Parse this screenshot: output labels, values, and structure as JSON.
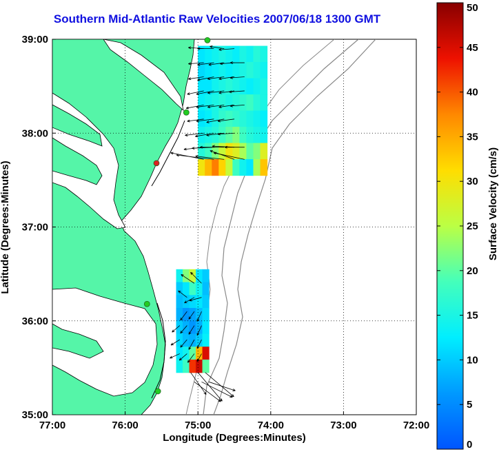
{
  "chart_data": {
    "type": "scatter",
    "title": "Southern Mid-Atlantic Raw Velocities 2007/06/18 1300 GMT",
    "xlabel": "Longitude (Degrees:Minutes)",
    "ylabel": "Latitude (Degrees:Minutes)",
    "xlim": [
      -77,
      -72
    ],
    "ylim": [
      35,
      39
    ],
    "xticks": [
      -77,
      -76,
      -75,
      -74,
      -73,
      -72
    ],
    "xtick_labels": [
      "77:00",
      "76:00",
      "75:00",
      "74:00",
      "73:00",
      "72:00"
    ],
    "yticks": [
      35,
      36,
      37,
      38,
      39
    ],
    "ytick_labels": [
      "35:00",
      "36:00",
      "37:00",
      "38:00",
      "39:00"
    ],
    "grid": true,
    "colorbar": {
      "label": "Surface Velocity (cm/s)",
      "range": [
        0,
        50
      ],
      "ticks": [
        0,
        5,
        10,
        15,
        20,
        25,
        30,
        35,
        40,
        45,
        50
      ],
      "colormap": "jet"
    },
    "land_color": "#55f5a8",
    "stations": [
      {
        "lon": -74.87,
        "lat": 38.99,
        "color": "#22cc22"
      },
      {
        "lon": -75.16,
        "lat": 38.22,
        "color": "#22cc22"
      },
      {
        "lon": -75.57,
        "lat": 37.68,
        "color": "#dd2222"
      },
      {
        "lon": -75.7,
        "lat": 36.18,
        "color": "#22cc22"
      },
      {
        "lon": -75.55,
        "lat": 35.25,
        "color": "#22cc22"
      }
    ],
    "regions": [
      {
        "name": "north",
        "lon": [
          -75.0,
          -74.05
        ],
        "lat": [
          37.55,
          38.93
        ],
        "speeds": [
          [
            12,
            13,
            14,
            15,
            14,
            13,
            15,
            14,
            16,
            15
          ],
          [
            11,
            12,
            13,
            14,
            13,
            14,
            15,
            16,
            15,
            14
          ],
          [
            12,
            12,
            14,
            15,
            16,
            15,
            14,
            13,
            14,
            15
          ],
          [
            13,
            14,
            15,
            16,
            15,
            16,
            17,
            18,
            16,
            15
          ],
          [
            12,
            13,
            15,
            17,
            18,
            17,
            16,
            15,
            14,
            13
          ],
          [
            14,
            15,
            16,
            18,
            20,
            22,
            18,
            16,
            15,
            14
          ],
          [
            16,
            18,
            22,
            26,
            30,
            28,
            24,
            20,
            22,
            28
          ],
          [
            30,
            34,
            38,
            32,
            26,
            18,
            14,
            12,
            24,
            33
          ]
        ]
      },
      {
        "name": "south",
        "lon": [
          -75.3,
          -74.85
        ],
        "lat": [
          35.45,
          36.55
        ],
        "speeds": [
          [
            14,
            22,
            26,
            12,
            10
          ],
          [
            10,
            12,
            18,
            14,
            9
          ],
          [
            9,
            10,
            11,
            12,
            10
          ],
          [
            8,
            6,
            7,
            9,
            11
          ],
          [
            10,
            8,
            6,
            8,
            12
          ],
          [
            11,
            9,
            8,
            10,
            13
          ],
          [
            12,
            14,
            20,
            34,
            45
          ],
          [
            14,
            18,
            42,
            46,
            20
          ]
        ]
      }
    ],
    "vectors": [
      {
        "lon": -74.92,
        "lat": 38.9,
        "u": -14,
        "v": 1
      },
      {
        "lon": -74.78,
        "lat": 38.9,
        "u": -15,
        "v": 0
      },
      {
        "lon": -74.64,
        "lat": 38.9,
        "u": -13,
        "v": 2
      },
      {
        "lon": -74.5,
        "lat": 38.9,
        "u": -14,
        "v": -1
      },
      {
        "lon": -74.92,
        "lat": 38.75,
        "u": -14,
        "v": -1
      },
      {
        "lon": -74.78,
        "lat": 38.75,
        "u": -15,
        "v": -2
      },
      {
        "lon": -74.64,
        "lat": 38.75,
        "u": -14,
        "v": -2
      },
      {
        "lon": -74.5,
        "lat": 38.75,
        "u": -13,
        "v": -1
      },
      {
        "lon": -74.36,
        "lat": 38.75,
        "u": -13,
        "v": 0
      },
      {
        "lon": -74.92,
        "lat": 38.6,
        "u": -14,
        "v": -2
      },
      {
        "lon": -74.78,
        "lat": 38.6,
        "u": -15,
        "v": -3
      },
      {
        "lon": -74.64,
        "lat": 38.6,
        "u": -15,
        "v": -2
      },
      {
        "lon": -74.5,
        "lat": 38.6,
        "u": -14,
        "v": -2
      },
      {
        "lon": -74.36,
        "lat": 38.6,
        "u": -13,
        "v": -1
      },
      {
        "lon": -74.92,
        "lat": 38.45,
        "u": -15,
        "v": -3
      },
      {
        "lon": -74.78,
        "lat": 38.45,
        "u": -16,
        "v": -3
      },
      {
        "lon": -74.64,
        "lat": 38.45,
        "u": -15,
        "v": -2
      },
      {
        "lon": -74.5,
        "lat": 38.45,
        "u": -14,
        "v": -2
      },
      {
        "lon": -74.36,
        "lat": 38.45,
        "u": -14,
        "v": -1
      },
      {
        "lon": -74.92,
        "lat": 38.3,
        "u": -16,
        "v": -3
      },
      {
        "lon": -74.78,
        "lat": 38.3,
        "u": -16,
        "v": -2
      },
      {
        "lon": -74.64,
        "lat": 38.3,
        "u": -15,
        "v": -2
      },
      {
        "lon": -74.5,
        "lat": 38.3,
        "u": -14,
        "v": -2
      },
      {
        "lon": -74.36,
        "lat": 38.3,
        "u": -13,
        "v": -1
      },
      {
        "lon": -74.92,
        "lat": 38.15,
        "u": -15,
        "v": -2
      },
      {
        "lon": -74.78,
        "lat": 38.15,
        "u": -16,
        "v": -2
      },
      {
        "lon": -74.64,
        "lat": 38.15,
        "u": -16,
        "v": -3
      },
      {
        "lon": -74.5,
        "lat": 38.15,
        "u": -15,
        "v": -2
      },
      {
        "lon": -74.92,
        "lat": 38.0,
        "u": -17,
        "v": -2
      },
      {
        "lon": -74.78,
        "lat": 38.0,
        "u": -17,
        "v": -3
      },
      {
        "lon": -74.64,
        "lat": 38.0,
        "u": -16,
        "v": -2
      },
      {
        "lon": -74.5,
        "lat": 38.0,
        "u": -15,
        "v": -1
      },
      {
        "lon": -74.92,
        "lat": 37.85,
        "u": -18,
        "v": -2
      },
      {
        "lon": -74.78,
        "lat": 37.85,
        "u": -20,
        "v": -1
      },
      {
        "lon": -74.64,
        "lat": 37.85,
        "u": -22,
        "v": 0
      },
      {
        "lon": -74.5,
        "lat": 37.85,
        "u": -20,
        "v": 1
      },
      {
        "lon": -74.36,
        "lat": 37.85,
        "u": -18,
        "v": 0
      },
      {
        "lon": -74.92,
        "lat": 37.72,
        "u": -30,
        "v": 6
      },
      {
        "lon": -74.78,
        "lat": 37.72,
        "u": -34,
        "v": 4
      },
      {
        "lon": -74.64,
        "lat": 37.72,
        "u": -26,
        "v": 3
      },
      {
        "lon": -74.5,
        "lat": 37.72,
        "u": -22,
        "v": 8
      },
      {
        "lon": -74.36,
        "lat": 37.72,
        "u": -28,
        "v": 6
      },
      {
        "lon": -75.05,
        "lat": 36.4,
        "u": -12,
        "v": 8
      },
      {
        "lon": -74.95,
        "lat": 36.4,
        "u": -10,
        "v": 10
      },
      {
        "lon": -75.15,
        "lat": 36.25,
        "u": -8,
        "v": 6
      },
      {
        "lon": -75.05,
        "lat": 36.25,
        "u": -9,
        "v": -5
      },
      {
        "lon": -74.95,
        "lat": 36.25,
        "u": -11,
        "v": -3
      },
      {
        "lon": -75.15,
        "lat": 36.1,
        "u": -6,
        "v": -8
      },
      {
        "lon": -75.05,
        "lat": 36.1,
        "u": -5,
        "v": -7
      },
      {
        "lon": -74.95,
        "lat": 36.1,
        "u": -4,
        "v": -9
      },
      {
        "lon": -75.25,
        "lat": 35.95,
        "u": -7,
        "v": -6
      },
      {
        "lon": -75.15,
        "lat": 35.95,
        "u": -6,
        "v": -7
      },
      {
        "lon": -75.05,
        "lat": 35.95,
        "u": -5,
        "v": -8
      },
      {
        "lon": -74.95,
        "lat": 35.95,
        "u": -4,
        "v": -9
      },
      {
        "lon": -75.25,
        "lat": 35.8,
        "u": -8,
        "v": -5
      },
      {
        "lon": -75.15,
        "lat": 35.8,
        "u": -6,
        "v": -7
      },
      {
        "lon": -75.05,
        "lat": 35.8,
        "u": -5,
        "v": -9
      },
      {
        "lon": -74.95,
        "lat": 35.8,
        "u": -4,
        "v": -8
      },
      {
        "lon": -75.25,
        "lat": 35.65,
        "u": -9,
        "v": -4
      },
      {
        "lon": -75.15,
        "lat": 35.65,
        "u": -7,
        "v": -6
      },
      {
        "lon": -75.05,
        "lat": 35.65,
        "u": -6,
        "v": -8
      },
      {
        "lon": -74.95,
        "lat": 35.65,
        "u": -4,
        "v": -7
      },
      {
        "lon": -75.1,
        "lat": 35.45,
        "u": 14,
        "v": -20
      },
      {
        "lon": -75.0,
        "lat": 35.45,
        "u": 22,
        "v": -26
      },
      {
        "lon": -74.9,
        "lat": 35.45,
        "u": 26,
        "v": -22
      },
      {
        "lon": -75.05,
        "lat": 35.35,
        "u": 24,
        "v": -18
      },
      {
        "lon": -74.95,
        "lat": 35.35,
        "u": 28,
        "v": -14
      },
      {
        "lon": -74.85,
        "lat": 35.35,
        "u": 24,
        "v": -8
      }
    ]
  }
}
